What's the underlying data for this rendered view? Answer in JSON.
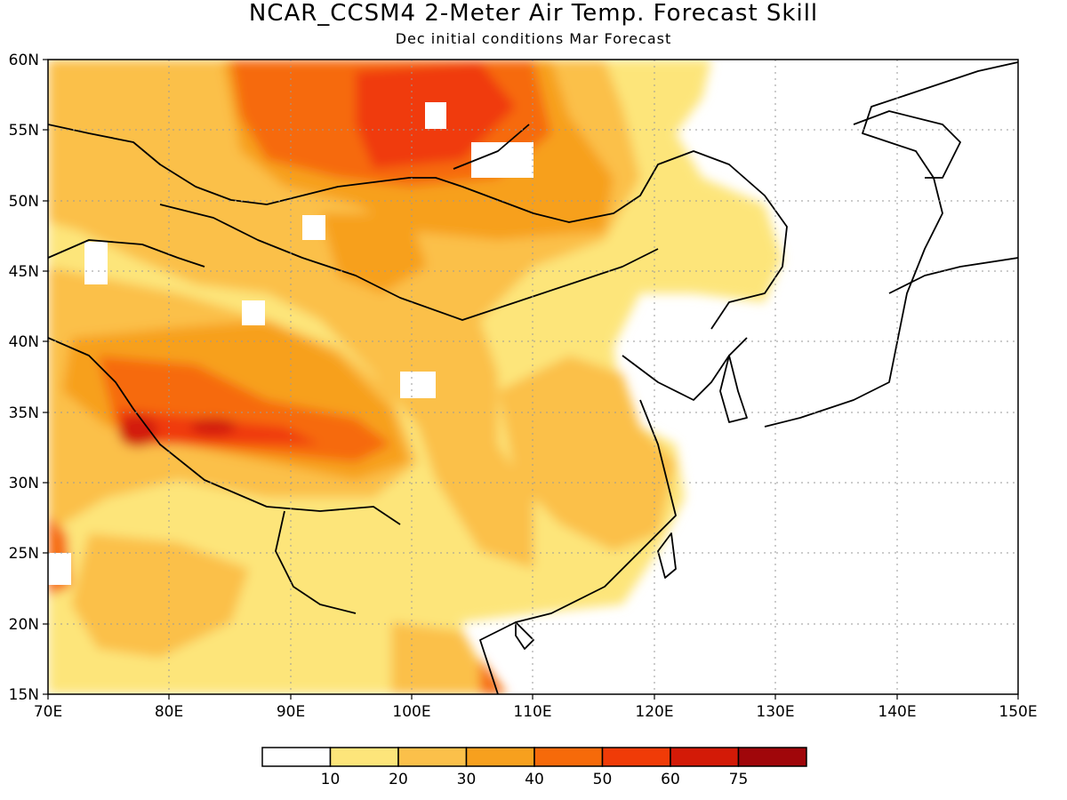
{
  "title": "NCAR_CCSM4 2-Meter Air Temp. Forecast Skill",
  "subtitle": "Dec initial conditions  Mar Forecast",
  "axes": {
    "lon_labels": [
      "70E",
      "80E",
      "90E",
      "100E",
      "110E",
      "120E",
      "130E",
      "140E",
      "150E"
    ],
    "lat_labels": [
      "60N",
      "55N",
      "50N",
      "45N",
      "40N",
      "35N",
      "30N",
      "25N",
      "20N",
      "15N"
    ]
  },
  "colorbar": {
    "colors": [
      "#ffffff",
      "#fde57a",
      "#fbc04a",
      "#f7a01e",
      "#f66a0a",
      "#f03b07",
      "#d31a07",
      "#a0060a"
    ],
    "tick_labels": [
      "10",
      "20",
      "30",
      "40",
      "50",
      "60",
      "75"
    ]
  }
}
